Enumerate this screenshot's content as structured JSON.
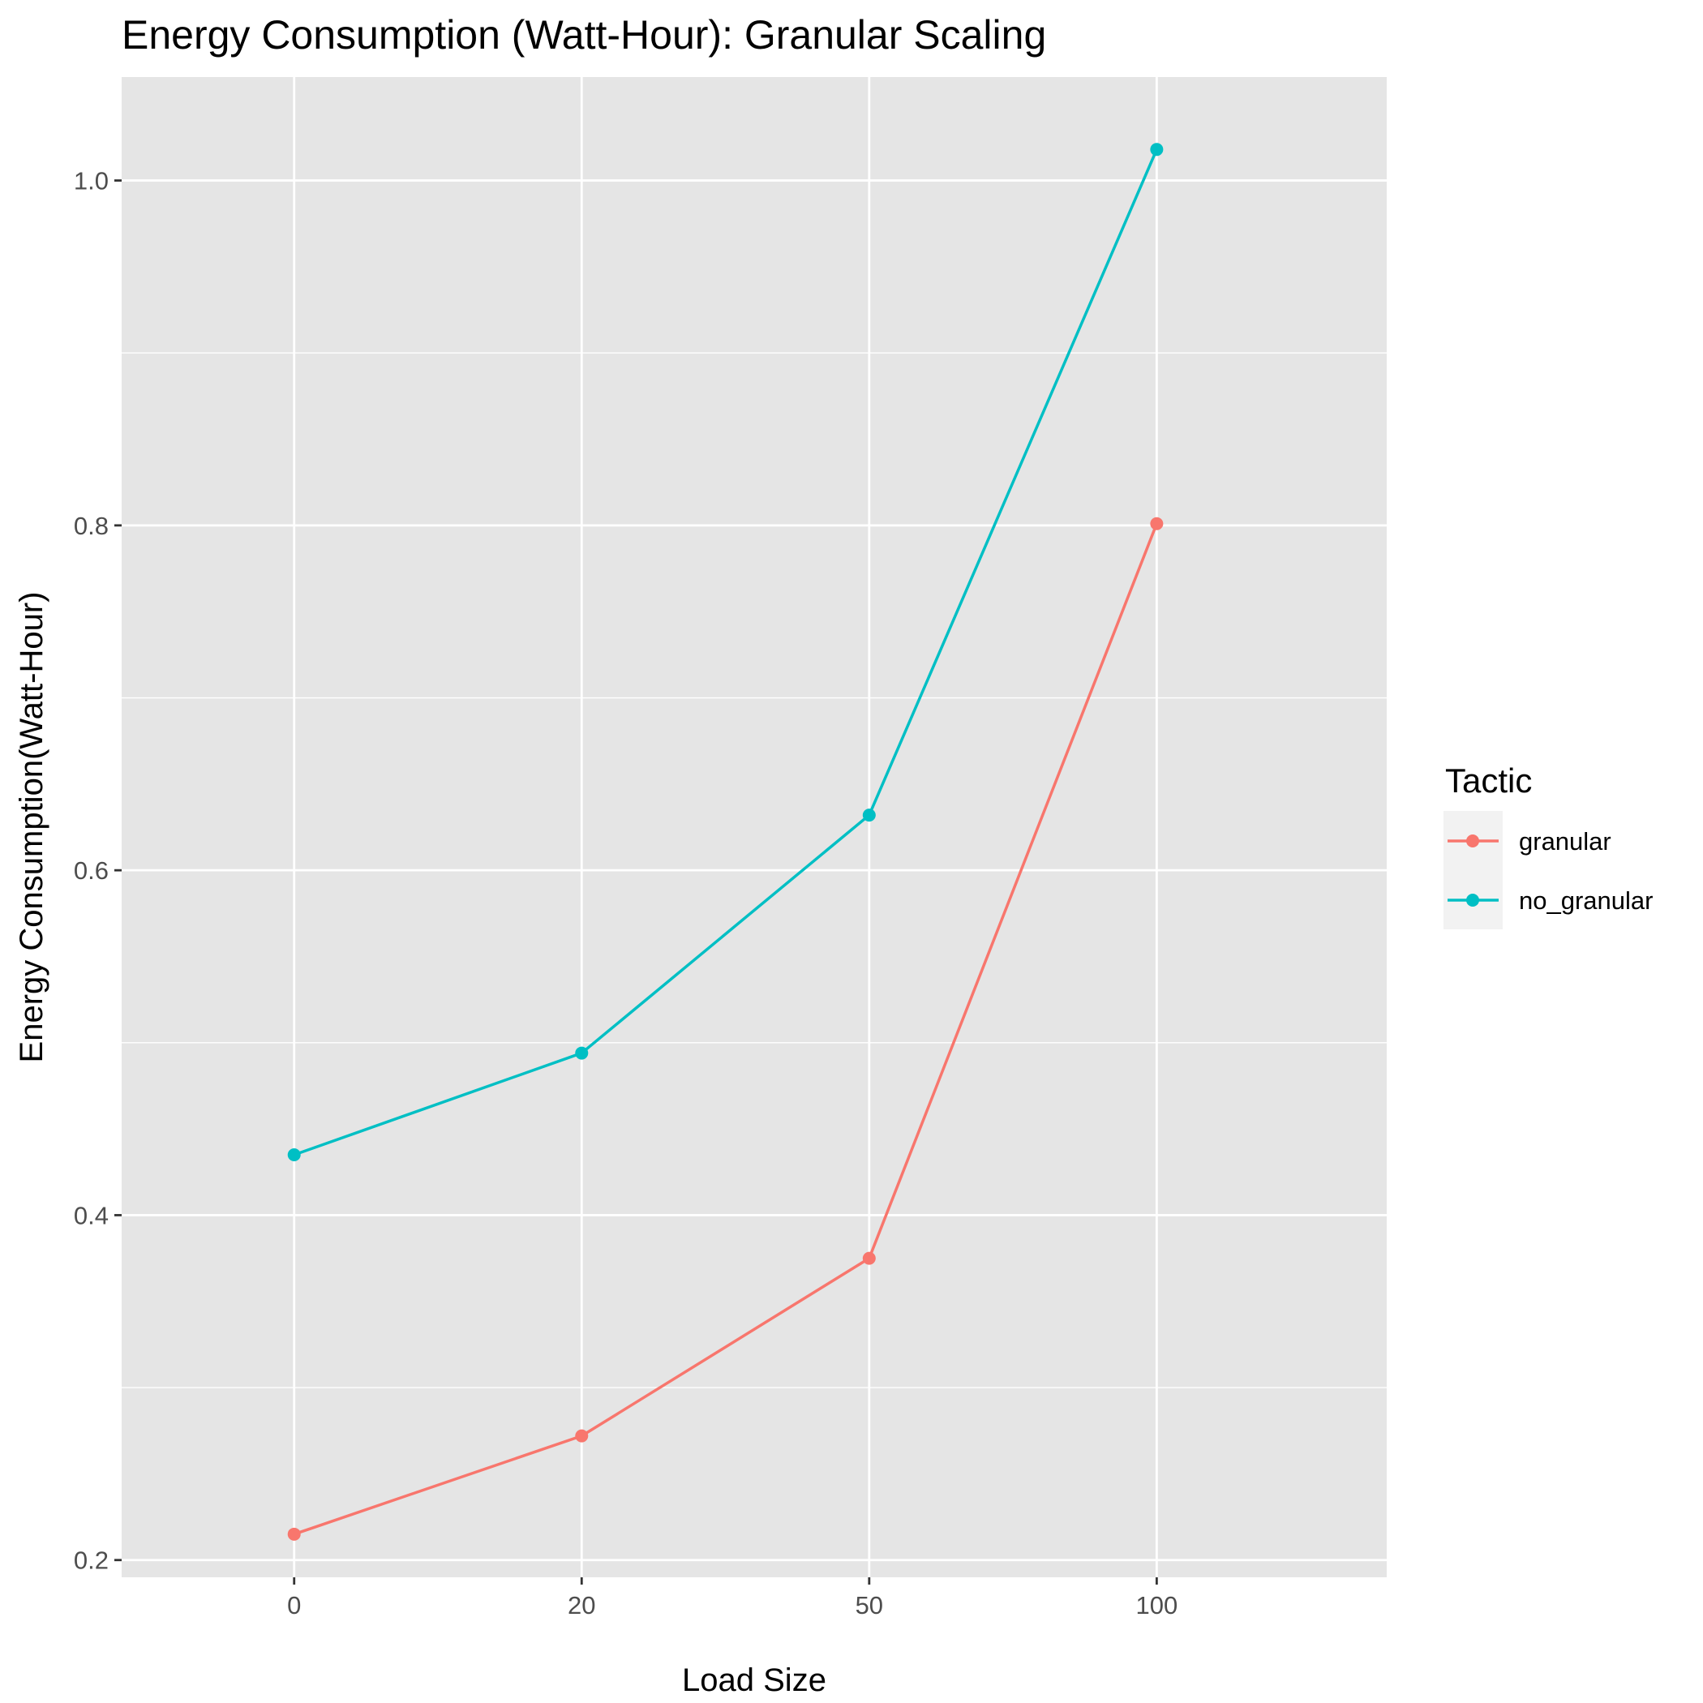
{
  "chart_data": {
    "type": "line",
    "title": "Energy Consumption (Watt-Hour): Granular Scaling",
    "xlabel": "Load Size",
    "ylabel": "Energy Consumption(Watt-Hour)",
    "categories": [
      "0",
      "20",
      "50",
      "100"
    ],
    "ylim": [
      0.19,
      1.06
    ],
    "yticks": [
      0.2,
      0.4,
      0.6,
      0.8,
      1.0
    ],
    "ytick_labels": [
      "0.2",
      "0.4",
      "0.6",
      "0.8",
      "1.0"
    ],
    "grid": true,
    "background": "#e5e5e5",
    "legend": {
      "title": "Tactic",
      "position": "right"
    },
    "series": [
      {
        "name": "granular",
        "color": "#f8766d",
        "values": [
          0.215,
          0.272,
          0.375,
          0.801
        ]
      },
      {
        "name": "no_granular",
        "color": "#00bfc4",
        "values": [
          0.435,
          0.494,
          0.632,
          1.018
        ]
      }
    ]
  }
}
